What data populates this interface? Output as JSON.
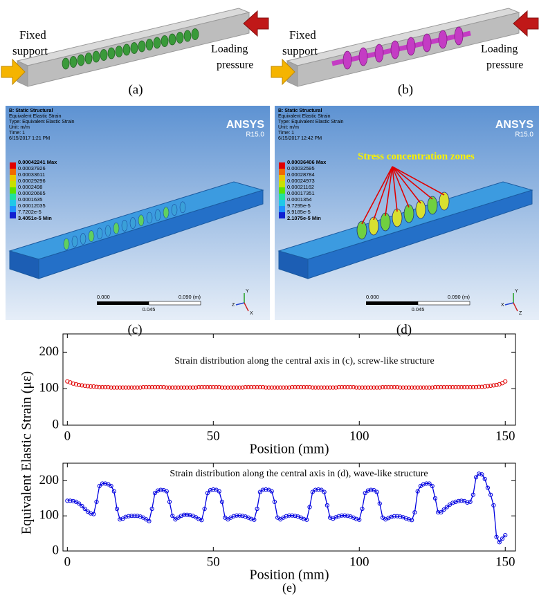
{
  "panel_a": {
    "caption": "(a)",
    "left_label": [
      "Fixed",
      "support"
    ],
    "right_label": [
      "Loading",
      "pressure"
    ]
  },
  "panel_b": {
    "caption": "(b)",
    "left_label": [
      "Fixed",
      "support"
    ],
    "right_label": [
      "Loading",
      "pressure"
    ]
  },
  "panel_c": {
    "caption": "(c)",
    "header": [
      "B: Static Structural",
      "Equivalent Elastic Strain",
      "Type: Equivalent Elastic Strain",
      "Unit: m/m",
      "Time: 1",
      "6/15/2017 1:21 PM"
    ],
    "legend": [
      "0.00042241 Max",
      "0.00037926",
      "0.00033611",
      "0.00029296",
      "0.0002498",
      "0.00020665",
      "0.0001635",
      "0.00012035",
      "7.7202e-5",
      "3.4051e-5 Min"
    ],
    "logo": "ANSYS",
    "version": "R15.0",
    "scale": {
      "start": "0.000",
      "end": "0.090 (m)",
      "mid": "0.045"
    },
    "triad": [
      "Y",
      "Z",
      "X"
    ]
  },
  "panel_d": {
    "caption": "(d)",
    "header": [
      "B: Static Structural",
      "Equivalent Elastic Strain",
      "Type: Equivalent Elastic Strain",
      "Unit: m/m",
      "Time: 1",
      "6/15/2017 12:42 PM"
    ],
    "legend": [
      "0.00036406 Max",
      "0.00032595",
      "0.00028784",
      "0.00024973",
      "0.00021162",
      "0.00017351",
      "0.0001354",
      "9.7295e-5",
      "5.9185e-5",
      "2.1075e-5 Min"
    ],
    "logo": "ANSYS",
    "version": "R15.0",
    "scale": {
      "start": "0.000",
      "end": "0.090 (m)",
      "mid": "0.045"
    },
    "triad": [
      "Y",
      "X",
      "Z"
    ],
    "annotation": "Stress concentration zones"
  },
  "shared_y_label": "Equivalent Elastic Strain (με)",
  "figure_caption": "(e)",
  "chart_data": [
    {
      "type": "scatter",
      "annotation": "Strain distribution along the central axis in (c), screw-like structure",
      "x_label": "Position (mm)",
      "xlim": [
        -1.5,
        153.5
      ],
      "xticks": [
        0,
        50,
        100,
        150
      ],
      "ylim": [
        0,
        250
      ],
      "yticks": [
        0,
        100,
        200
      ],
      "x": [
        0,
        1,
        2,
        3,
        4,
        5,
        6,
        7,
        8,
        9,
        10,
        11,
        12,
        13,
        14,
        15,
        16,
        17,
        18,
        19,
        20,
        21,
        22,
        23,
        24,
        25,
        26,
        27,
        28,
        29,
        30,
        31,
        32,
        33,
        34,
        35,
        36,
        37,
        38,
        39,
        40,
        41,
        42,
        43,
        44,
        45,
        46,
        47,
        48,
        49,
        50,
        51,
        52,
        53,
        54,
        55,
        56,
        57,
        58,
        59,
        60,
        61,
        62,
        63,
        64,
        65,
        66,
        67,
        68,
        69,
        70,
        71,
        72,
        73,
        74,
        75,
        76,
        77,
        78,
        79,
        80,
        81,
        82,
        83,
        84,
        85,
        86,
        87,
        88,
        89,
        90,
        91,
        92,
        93,
        94,
        95,
        96,
        97,
        98,
        99,
        100,
        101,
        102,
        103,
        104,
        105,
        106,
        107,
        108,
        109,
        110,
        111,
        112,
        113,
        114,
        115,
        116,
        117,
        118,
        119,
        120,
        121,
        122,
        123,
        124,
        125,
        126,
        127,
        128,
        129,
        130,
        131,
        132,
        133,
        134,
        135,
        136,
        137,
        138,
        139,
        140,
        141,
        142,
        143,
        144,
        145,
        146,
        147,
        148,
        149,
        150
      ],
      "series": [
        {
          "color": "#e00000",
          "values": [
            120,
            117,
            114,
            112,
            110,
            109,
            108,
            107,
            106,
            106,
            105,
            104,
            104,
            104,
            104,
            103,
            103,
            103,
            103,
            103,
            103,
            103,
            103,
            103,
            103,
            103,
            104,
            104,
            104,
            104,
            104,
            104,
            104,
            104,
            103,
            103,
            103,
            103,
            103,
            103,
            103,
            103,
            103,
            103,
            103,
            104,
            104,
            104,
            104,
            104,
            104,
            104,
            104,
            103,
            103,
            103,
            103,
            103,
            103,
            103,
            103,
            104,
            104,
            104,
            104,
            104,
            104,
            104,
            103,
            103,
            103,
            103,
            103,
            103,
            103,
            103,
            103,
            104,
            104,
            104,
            104,
            104,
            104,
            104,
            103,
            103,
            103,
            103,
            103,
            103,
            103,
            103,
            103,
            104,
            104,
            104,
            104,
            104,
            104,
            103,
            103,
            103,
            103,
            103,
            103,
            103,
            103,
            103,
            104,
            104,
            104,
            104,
            104,
            104,
            103,
            103,
            103,
            103,
            103,
            103,
            103,
            103,
            103,
            103,
            103,
            103,
            104,
            104,
            104,
            104,
            104,
            104,
            104,
            104,
            104,
            104,
            104,
            104,
            104,
            104,
            104,
            105,
            105,
            106,
            107,
            108,
            109,
            110,
            112,
            115,
            120
          ]
        }
      ]
    },
    {
      "type": "line",
      "annotation": "Strain distribution along the central axis in (d), wave-like structure",
      "x_label": "Position (mm)",
      "xlim": [
        -1.5,
        153.5
      ],
      "xticks": [
        0,
        50,
        100,
        150
      ],
      "ylim": [
        0,
        250
      ],
      "yticks": [
        0,
        100,
        200
      ],
      "x": [
        0,
        1,
        2,
        3,
        4,
        5,
        6,
        7,
        8,
        9,
        10,
        11,
        12,
        13,
        14,
        15,
        16,
        17,
        18,
        19,
        20,
        21,
        22,
        23,
        24,
        25,
        26,
        27,
        28,
        29,
        30,
        31,
        32,
        33,
        34,
        35,
        36,
        37,
        38,
        39,
        40,
        41,
        42,
        43,
        44,
        45,
        46,
        47,
        48,
        49,
        50,
        51,
        52,
        53,
        54,
        55,
        56,
        57,
        58,
        59,
        60,
        61,
        62,
        63,
        64,
        65,
        66,
        67,
        68,
        69,
        70,
        71,
        72,
        73,
        74,
        75,
        76,
        77,
        78,
        79,
        80,
        81,
        82,
        83,
        84,
        85,
        86,
        87,
        88,
        89,
        90,
        91,
        92,
        93,
        94,
        95,
        96,
        97,
        98,
        99,
        100,
        101,
        102,
        103,
        104,
        105,
        106,
        107,
        108,
        109,
        110,
        111,
        112,
        113,
        114,
        115,
        116,
        117,
        118,
        119,
        120,
        121,
        122,
        123,
        124,
        125,
        126,
        127,
        128,
        129,
        130,
        131,
        132,
        133,
        134,
        135,
        136,
        137,
        138,
        139,
        140,
        141,
        142,
        143,
        144,
        145,
        146,
        147,
        148,
        149,
        150
      ],
      "series": [
        {
          "color": "#0000e0",
          "values": [
            143,
            143,
            142,
            140,
            135,
            128,
            120,
            112,
            107,
            105,
            140,
            185,
            192,
            192,
            190,
            185,
            170,
            120,
            90,
            92,
            97,
            99,
            100,
            100,
            100,
            98,
            95,
            90,
            85,
            120,
            165,
            172,
            174,
            173,
            170,
            140,
            100,
            90,
            95,
            100,
            103,
            103,
            102,
            100,
            96,
            91,
            88,
            120,
            165,
            173,
            175,
            174,
            170,
            140,
            95,
            90,
            95,
            99,
            101,
            101,
            100,
            98,
            95,
            91,
            89,
            120,
            168,
            174,
            175,
            174,
            170,
            140,
            95,
            90,
            95,
            99,
            101,
            101,
            100,
            98,
            95,
            91,
            89,
            125,
            168,
            174,
            175,
            174,
            168,
            130,
            95,
            92,
            96,
            99,
            101,
            101,
            100,
            98,
            95,
            91,
            89,
            120,
            165,
            172,
            174,
            173,
            168,
            135,
            95,
            90,
            94,
            97,
            99,
            99,
            98,
            96,
            93,
            90,
            88,
            110,
            170,
            185,
            190,
            192,
            192,
            185,
            150,
            110,
            110,
            118,
            125,
            132,
            137,
            140,
            142,
            143,
            142,
            138,
            140,
            160,
            210,
            220,
            218,
            205,
            180,
            160,
            130,
            40,
            25,
            35,
            45
          ]
        }
      ]
    }
  ]
}
